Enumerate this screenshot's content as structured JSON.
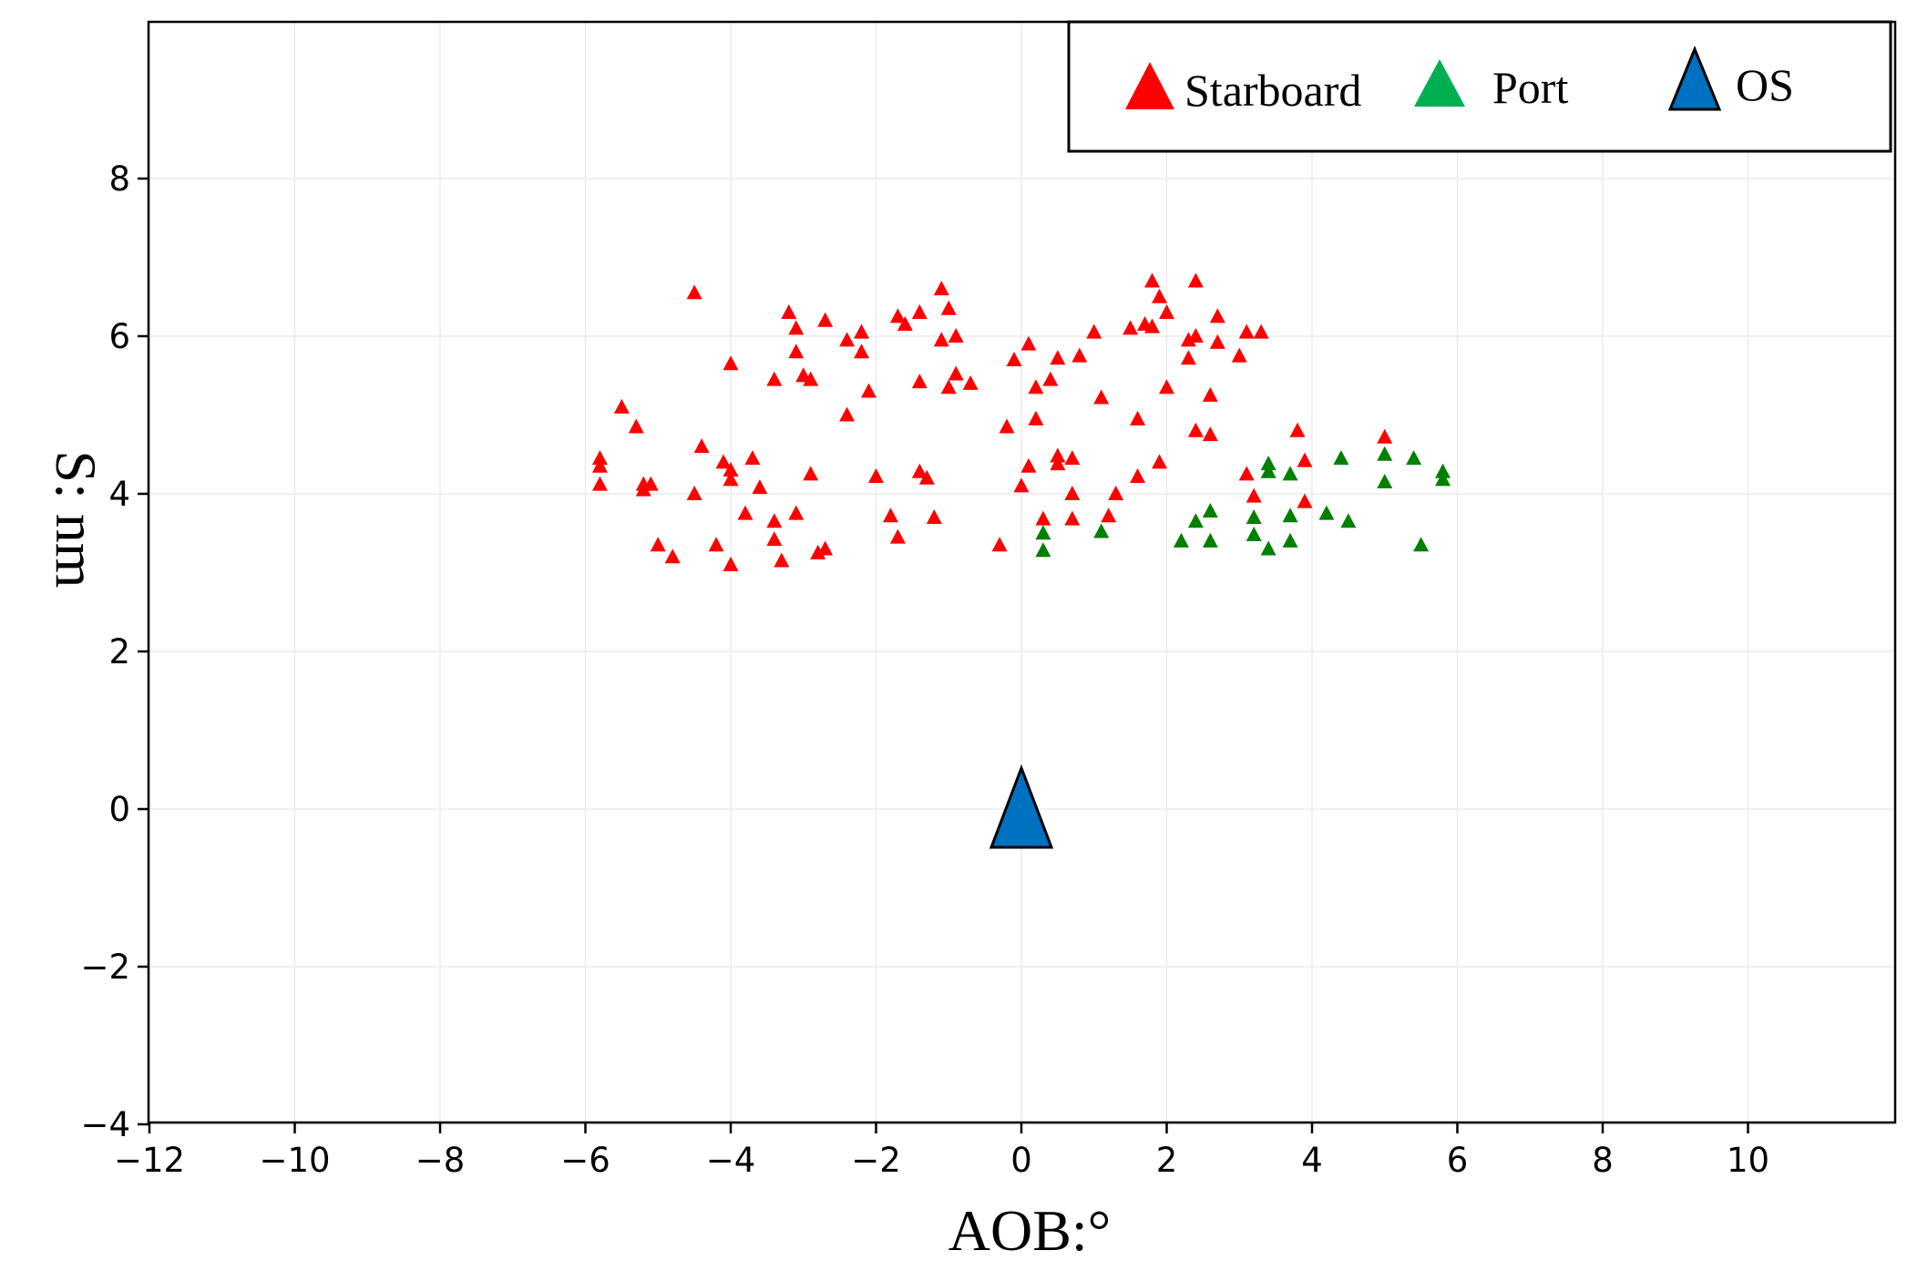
{
  "chart_data": {
    "type": "scatter",
    "title": "",
    "xlabel": "AOB:°",
    "ylabel": "S: nm",
    "xlim": [
      -12,
      12
    ],
    "ylim": [
      -4,
      10
    ],
    "grid": true,
    "x_ticks": [
      -12,
      -10,
      -8,
      -6,
      -4,
      -2,
      0,
      2,
      4,
      6,
      8,
      10
    ],
    "y_ticks": [
      -4,
      -2,
      0,
      2,
      4,
      6,
      8
    ],
    "x_tick_labels": [
      "−12",
      "−10",
      "−8",
      "−6",
      "−4",
      "−2",
      "0",
      "2",
      "4",
      "6",
      "8",
      "10"
    ],
    "y_tick_labels": [
      "−4",
      "−2",
      "0",
      "2",
      "4",
      "6",
      "8"
    ],
    "legend": {
      "placement": "top-right",
      "entries": [
        {
          "name": "Starboard",
          "color": "#ff0000",
          "marker": "triangle"
        },
        {
          "name": "Port",
          "color": "#00b050",
          "marker": "triangle"
        },
        {
          "name": "OS",
          "color": "#0070c0",
          "marker": "triangle"
        }
      ]
    },
    "series": [
      {
        "name": "Starboard",
        "color": "#ff0000",
        "points": [
          [
            -5.8,
            4.45
          ],
          [
            -5.8,
            4.35
          ],
          [
            -5.8,
            4.12
          ],
          [
            -5.5,
            5.1
          ],
          [
            -5.3,
            4.85
          ],
          [
            -5.2,
            4.12
          ],
          [
            -5.2,
            4.05
          ],
          [
            -5.1,
            4.12
          ],
          [
            -5.0,
            3.35
          ],
          [
            -4.8,
            3.2
          ],
          [
            -4.5,
            6.55
          ],
          [
            -4.5,
            4.0
          ],
          [
            -4.4,
            4.6
          ],
          [
            -4.2,
            3.35
          ],
          [
            -4.1,
            4.4
          ],
          [
            -4.0,
            4.3
          ],
          [
            -4.0,
            4.18
          ],
          [
            -4.0,
            3.1
          ],
          [
            -4.0,
            5.65
          ],
          [
            -3.8,
            3.75
          ],
          [
            -3.7,
            4.45
          ],
          [
            -3.6,
            4.08
          ],
          [
            -3.4,
            3.65
          ],
          [
            -3.4,
            3.42
          ],
          [
            -3.4,
            5.45
          ],
          [
            -3.3,
            3.15
          ],
          [
            -3.2,
            6.3
          ],
          [
            -3.1,
            6.1
          ],
          [
            -3.1,
            5.8
          ],
          [
            -3.1,
            3.75
          ],
          [
            -3.0,
            5.5
          ],
          [
            -2.9,
            5.45
          ],
          [
            -2.9,
            4.25
          ],
          [
            -2.8,
            3.25
          ],
          [
            -2.7,
            6.2
          ],
          [
            -2.7,
            3.3
          ],
          [
            -2.4,
            5.95
          ],
          [
            -2.4,
            5.0
          ],
          [
            -2.2,
            6.05
          ],
          [
            -2.2,
            5.8
          ],
          [
            -2.1,
            5.3
          ],
          [
            -2.0,
            4.22
          ],
          [
            -1.8,
            3.72
          ],
          [
            -1.7,
            6.25
          ],
          [
            -1.7,
            3.45
          ],
          [
            -1.6,
            6.15
          ],
          [
            -1.4,
            6.3
          ],
          [
            -1.4,
            5.42
          ],
          [
            -1.4,
            4.28
          ],
          [
            -1.3,
            4.2
          ],
          [
            -1.2,
            3.7
          ],
          [
            -1.1,
            6.6
          ],
          [
            -1.1,
            5.95
          ],
          [
            -1.0,
            6.35
          ],
          [
            -1.0,
            5.35
          ],
          [
            -0.9,
            6.0
          ],
          [
            -0.9,
            5.52
          ],
          [
            -0.7,
            5.4
          ],
          [
            -0.3,
            3.35
          ],
          [
            -0.2,
            4.85
          ],
          [
            -0.1,
            5.7
          ],
          [
            0.0,
            4.1
          ],
          [
            0.1,
            5.9
          ],
          [
            0.1,
            4.35
          ],
          [
            0.2,
            5.35
          ],
          [
            0.2,
            4.95
          ],
          [
            0.3,
            3.68
          ],
          [
            0.4,
            5.45
          ],
          [
            0.5,
            5.72
          ],
          [
            0.5,
            4.48
          ],
          [
            0.5,
            4.38
          ],
          [
            0.7,
            4.45
          ],
          [
            0.7,
            4.0
          ],
          [
            0.7,
            3.68
          ],
          [
            0.8,
            5.75
          ],
          [
            1.0,
            6.05
          ],
          [
            1.1,
            5.22
          ],
          [
            1.2,
            3.72
          ],
          [
            1.3,
            4.0
          ],
          [
            1.5,
            6.1
          ],
          [
            1.6,
            4.95
          ],
          [
            1.6,
            4.22
          ],
          [
            1.7,
            6.15
          ],
          [
            1.8,
            6.7
          ],
          [
            1.8,
            6.12
          ],
          [
            1.9,
            6.5
          ],
          [
            1.9,
            4.4
          ],
          [
            2.0,
            6.3
          ],
          [
            2.0,
            5.35
          ],
          [
            2.3,
            5.95
          ],
          [
            2.3,
            5.72
          ],
          [
            2.4,
            6.0
          ],
          [
            2.4,
            4.8
          ],
          [
            2.4,
            6.7
          ],
          [
            2.6,
            5.25
          ],
          [
            2.6,
            4.75
          ],
          [
            2.7,
            6.25
          ],
          [
            2.7,
            5.92
          ],
          [
            3.0,
            5.75
          ],
          [
            3.1,
            6.05
          ],
          [
            3.1,
            4.25
          ],
          [
            3.2,
            3.97
          ],
          [
            3.3,
            6.05
          ],
          [
            3.8,
            4.8
          ],
          [
            3.9,
            4.42
          ],
          [
            3.9,
            3.9
          ],
          [
            5.0,
            4.72
          ]
        ]
      },
      {
        "name": "Port",
        "color": "#008000",
        "points": [
          [
            0.3,
            3.5
          ],
          [
            0.3,
            3.28
          ],
          [
            1.1,
            3.52
          ],
          [
            2.2,
            3.4
          ],
          [
            2.4,
            3.65
          ],
          [
            2.6,
            3.78
          ],
          [
            2.6,
            3.4
          ],
          [
            3.2,
            3.7
          ],
          [
            3.2,
            3.48
          ],
          [
            3.4,
            4.38
          ],
          [
            3.4,
            4.28
          ],
          [
            3.4,
            3.3
          ],
          [
            3.7,
            4.25
          ],
          [
            3.7,
            3.72
          ],
          [
            3.7,
            3.4
          ],
          [
            4.2,
            3.75
          ],
          [
            4.4,
            4.45
          ],
          [
            4.5,
            3.65
          ],
          [
            5.0,
            4.5
          ],
          [
            5.0,
            4.15
          ],
          [
            5.4,
            4.45
          ],
          [
            5.5,
            3.35
          ],
          [
            5.8,
            4.28
          ],
          [
            5.8,
            4.18
          ]
        ]
      },
      {
        "name": "OS",
        "color": "#0070c0",
        "points": [
          [
            0.0,
            0.0
          ]
        ]
      }
    ]
  }
}
